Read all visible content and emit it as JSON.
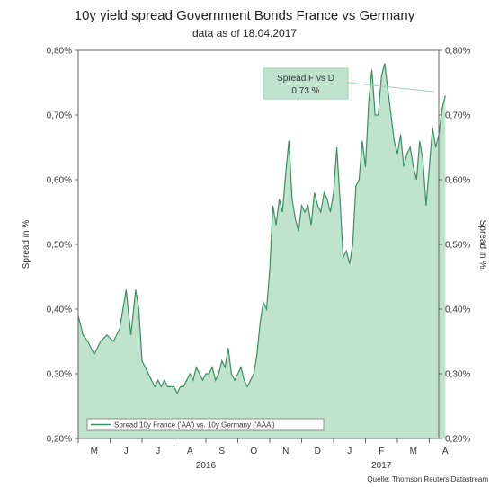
{
  "chart_data": {
    "type": "area",
    "title": "10y yield spread Government Bonds France vs Germany",
    "subtitle": "data as of 18.04.2017",
    "ylabel_left": "Spread in %",
    "ylabel_right": "Spread in %",
    "ylim": [
      0.2,
      0.8
    ],
    "yticks": [
      "0,20%",
      "0,30%",
      "0,40%",
      "0,50%",
      "0,60%",
      "0,70%",
      "0,80%"
    ],
    "yticks_values": [
      0.2,
      0.3,
      0.4,
      0.5,
      0.6,
      0.7,
      0.8
    ],
    "month_labels": [
      "M",
      "J",
      "J",
      "A",
      "S",
      "O",
      "N",
      "D",
      "J",
      "F",
      "M",
      "A"
    ],
    "year_labels": [
      "2016",
      "2017"
    ],
    "grid": false,
    "legend": {
      "position": "bottom-left",
      "entries": [
        "Spread 10y France ('AA') vs. 10y Germany ('AAA')"
      ]
    },
    "callout": {
      "line1": "Spread F vs D",
      "line2": "0,73 %"
    },
    "source": "Quelle: Thomson Reuters Datastream",
    "colors": {
      "fill": "#bfe3cd",
      "line": "#3a8f61",
      "callout_bg": "#bfe3cd"
    },
    "series": [
      {
        "name": "Spread 10y France ('AA') vs. 10y Germany ('AAA')",
        "x_months": [
          0.0,
          0.15,
          0.3,
          0.5,
          0.7,
          0.9,
          1.1,
          1.3,
          1.5,
          1.65,
          1.8,
          1.9,
          2.0,
          2.1,
          2.2,
          2.3,
          2.4,
          2.5,
          2.6,
          2.7,
          2.8,
          2.9,
          3.0,
          3.1,
          3.2,
          3.3,
          3.4,
          3.5,
          3.6,
          3.7,
          3.8,
          3.9,
          4.0,
          4.1,
          4.2,
          4.3,
          4.4,
          4.5,
          4.6,
          4.7,
          4.8,
          4.9,
          5.0,
          5.1,
          5.2,
          5.3,
          5.4,
          5.5,
          5.6,
          5.7,
          5.8,
          5.9,
          6.0,
          6.1,
          6.2,
          6.3,
          6.4,
          6.5,
          6.6,
          6.7,
          6.8,
          6.9,
          7.0,
          7.1,
          7.2,
          7.3,
          7.4,
          7.5,
          7.6,
          7.7,
          7.8,
          7.9,
          8.0,
          8.1,
          8.2,
          8.3,
          8.4,
          8.5,
          8.6,
          8.7,
          8.8,
          8.9,
          9.0,
          9.1,
          9.2,
          9.3,
          9.4,
          9.5,
          9.6,
          9.7,
          9.8,
          9.9,
          10.0,
          10.1,
          10.2,
          10.3,
          10.4,
          10.5,
          10.6,
          10.7,
          10.8,
          10.9,
          11.0,
          11.1,
          11.2,
          11.3,
          11.4,
          11.5
        ],
        "values": [
          0.39,
          0.36,
          0.35,
          0.33,
          0.35,
          0.36,
          0.35,
          0.37,
          0.43,
          0.36,
          0.43,
          0.4,
          0.32,
          0.31,
          0.3,
          0.29,
          0.28,
          0.29,
          0.28,
          0.29,
          0.28,
          0.28,
          0.28,
          0.27,
          0.28,
          0.28,
          0.29,
          0.3,
          0.29,
          0.31,
          0.3,
          0.29,
          0.3,
          0.3,
          0.31,
          0.29,
          0.3,
          0.32,
          0.31,
          0.34,
          0.3,
          0.29,
          0.3,
          0.31,
          0.29,
          0.28,
          0.29,
          0.3,
          0.33,
          0.38,
          0.41,
          0.4,
          0.46,
          0.56,
          0.53,
          0.57,
          0.55,
          0.61,
          0.66,
          0.57,
          0.54,
          0.52,
          0.56,
          0.55,
          0.56,
          0.53,
          0.58,
          0.56,
          0.55,
          0.58,
          0.57,
          0.55,
          0.58,
          0.65,
          0.57,
          0.48,
          0.49,
          0.47,
          0.5,
          0.59,
          0.6,
          0.66,
          0.62,
          0.72,
          0.77,
          0.7,
          0.7,
          0.76,
          0.78,
          0.74,
          0.7,
          0.66,
          0.64,
          0.67,
          0.62,
          0.64,
          0.65,
          0.62,
          0.6,
          0.66,
          0.63,
          0.56,
          0.62,
          0.68,
          0.65,
          0.67,
          0.71,
          0.73
        ],
        "area_from": 0.2
      }
    ]
  }
}
